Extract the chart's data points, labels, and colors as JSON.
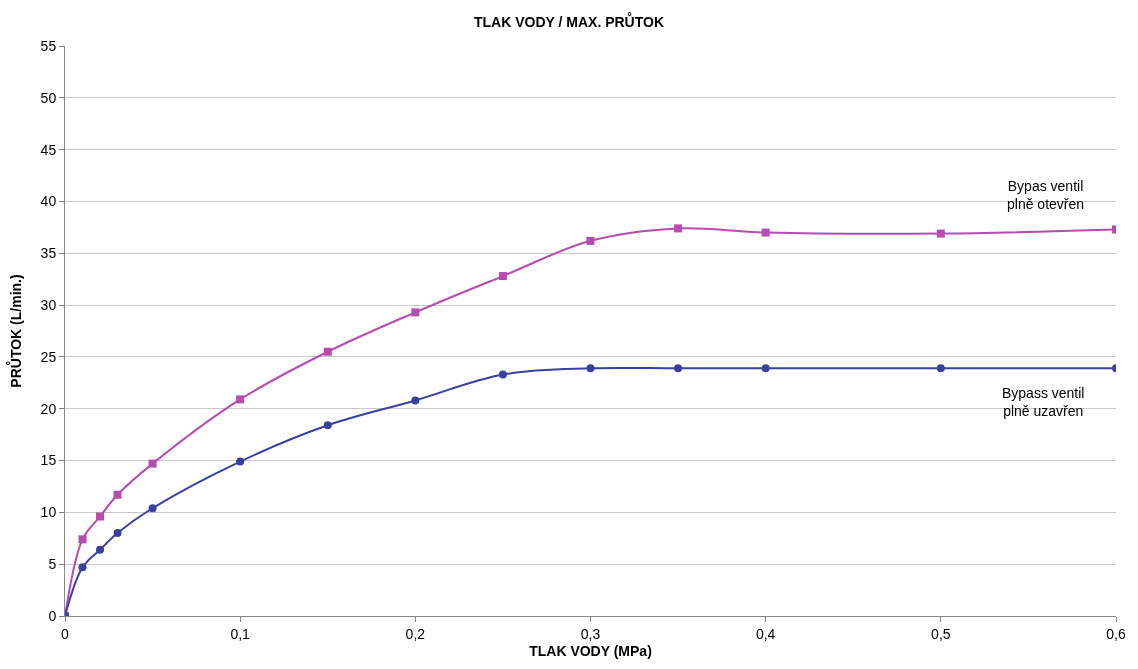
{
  "chart_data": {
    "type": "line",
    "title": "TLAK VODY / MAX. PRŮTOK",
    "xlabel": "TLAK VODY (MPa)",
    "ylabel": "PRŮTOK (L/min.)",
    "series": [
      {
        "name": "Bypas ventil\nplně otevřen",
        "color": "#b84bb0",
        "marker": "square",
        "x": [
          0,
          0.01,
          0.02,
          0.03,
          0.05,
          0.1,
          0.15,
          0.2,
          0.25,
          0.3,
          0.35,
          0.4,
          0.5,
          0.6
        ],
        "values": [
          0,
          7.4,
          9.6,
          11.7,
          14.7,
          20.9,
          25.5,
          29.3,
          32.8,
          36.2,
          37.4,
          37.0,
          36.9,
          37.3
        ]
      },
      {
        "name": "Bypass ventil\nplně uzavřen",
        "color": "#3a3fa0",
        "marker": "circle",
        "x": [
          0,
          0.01,
          0.02,
          0.03,
          0.05,
          0.1,
          0.15,
          0.2,
          0.25,
          0.3,
          0.35,
          0.4,
          0.5,
          0.6
        ],
        "values": [
          0,
          4.7,
          6.4,
          8.0,
          10.4,
          14.9,
          18.4,
          20.8,
          23.3,
          23.9,
          23.9,
          23.9,
          23.9,
          23.9
        ]
      }
    ],
    "xlim": [
      0,
      0.6
    ],
    "xticks": [
      0,
      {
        "value": 0.1,
        "label": "0,1"
      },
      {
        "value": 0.2,
        "label": "0,2"
      },
      {
        "value": 0.3,
        "label": "0,3"
      },
      {
        "value": 0.4,
        "label": "0,4"
      },
      {
        "value": 0.5,
        "label": "0,5"
      },
      {
        "value": 0.6,
        "label": "0,6"
      }
    ],
    "ylim": [
      0,
      55
    ],
    "yticks": [
      0,
      5,
      10,
      15,
      20,
      25,
      30,
      35,
      40,
      45,
      50,
      55
    ],
    "grid": "y",
    "legend": false
  }
}
